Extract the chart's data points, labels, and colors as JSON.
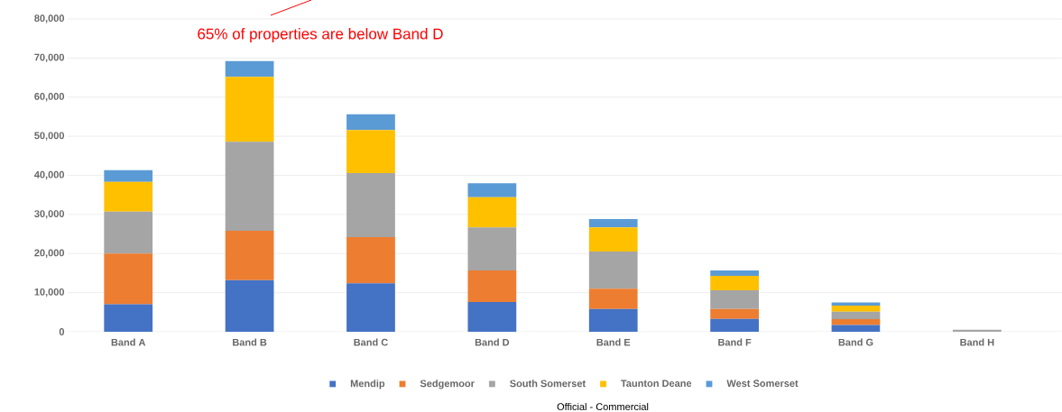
{
  "chart_data": {
    "type": "bar",
    "stacked": true,
    "categories": [
      "Band A",
      "Band B",
      "Band C",
      "Band D",
      "Band E",
      "Band F",
      "Band G",
      "Band H"
    ],
    "series": [
      {
        "name": "Mendip",
        "color": "#4472c4",
        "values": [
          7000,
          13200,
          12400,
          7600,
          5800,
          3300,
          1700,
          null
        ]
      },
      {
        "name": "Sedgemoor",
        "color": "#ed7d31",
        "values": [
          13000,
          12600,
          11800,
          8100,
          5200,
          2500,
          1500,
          null
        ]
      },
      {
        "name": "South Somerset",
        "color": "#a5a5a5",
        "values": [
          10700,
          22800,
          16400,
          11000,
          9500,
          4800,
          1900,
          500
        ]
      },
      {
        "name": "Taunton Deane",
        "color": "#ffc000",
        "values": [
          7600,
          16600,
          11000,
          7700,
          6200,
          3700,
          1600,
          null
        ]
      },
      {
        "name": "West Somerset",
        "color": "#5b9bd5",
        "values": [
          3000,
          4000,
          4000,
          3600,
          2100,
          1400,
          800,
          null
        ]
      }
    ],
    "ylim": [
      0,
      80000
    ],
    "yticks": [
      {
        "value": 0,
        "label": "0"
      },
      {
        "value": 10000,
        "label": "10,000"
      },
      {
        "value": 20000,
        "label": "20,000"
      },
      {
        "value": 30000,
        "label": "30,000"
      },
      {
        "value": 40000,
        "label": "40,000"
      },
      {
        "value": 50000,
        "label": "50,000"
      },
      {
        "value": 60000,
        "label": "60,000"
      },
      {
        "value": 70000,
        "label": "70,000"
      },
      {
        "value": 80000,
        "label": "80,000"
      }
    ],
    "grid": "y",
    "legend": "bottom",
    "annotations": [
      "65% of properties are below Band D",
      "Official - Commercial"
    ]
  }
}
